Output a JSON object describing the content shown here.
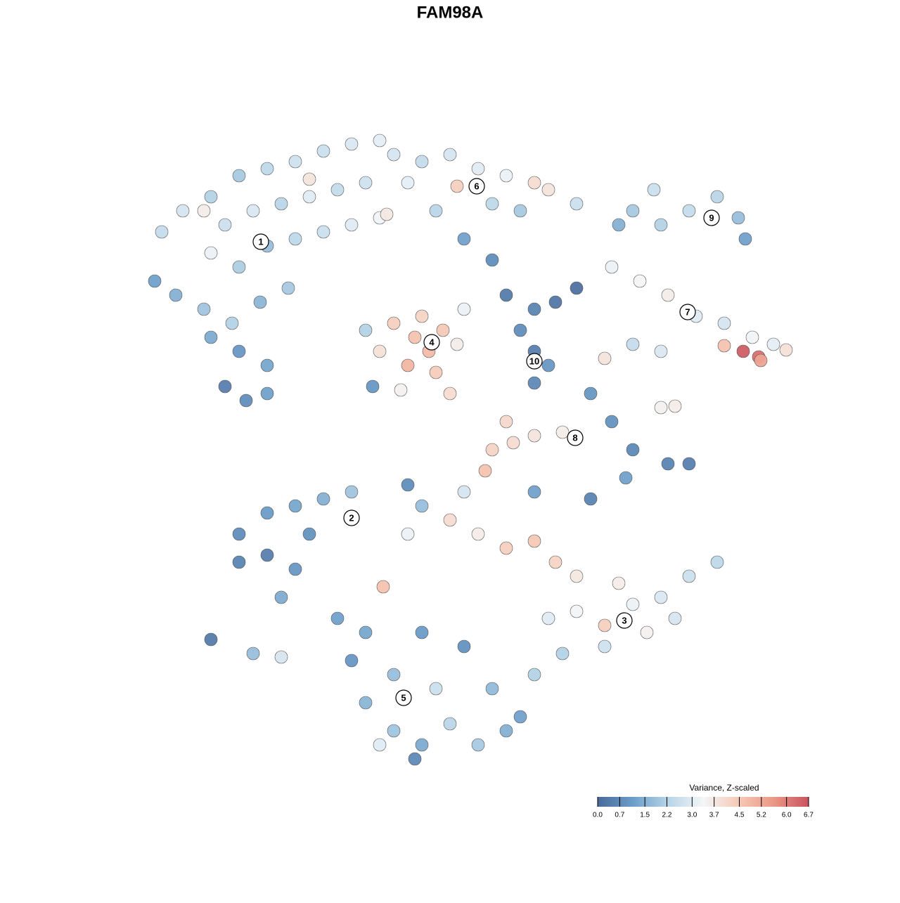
{
  "chart_data": {
    "type": "scatter",
    "title": "FAM98A",
    "xlim": [
      0,
      930
    ],
    "ylim": [
      0,
      905
    ],
    "x": [
      30,
      60,
      100,
      140,
      180,
      220,
      260,
      300,
      340,
      360,
      120,
      160,
      200,
      240,
      280,
      320,
      100,
      140,
      180,
      220,
      260,
      300,
      340,
      20,
      50,
      90,
      130,
      170,
      210,
      100,
      140,
      180,
      120,
      150,
      180,
      90,
      240,
      350,
      400,
      440,
      480,
      520,
      560,
      580,
      620,
      450,
      500,
      540,
      460,
      500,
      380,
      420,
      360,
      390,
      410,
      430,
      380,
      420,
      450,
      340,
      400,
      370,
      330,
      320,
      440,
      460,
      520,
      560,
      590,
      540,
      560,
      580,
      560,
      620,
      700,
      740,
      780,
      820,
      850,
      860,
      730,
      680,
      670,
      710,
      750,
      790,
      830,
      870,
      900,
      918,
      830,
      857,
      879,
      882,
      700,
      660,
      740,
      640,
      670,
      700,
      750,
      780,
      690,
      740,
      760,
      500,
      530,
      560,
      600,
      490,
      520,
      140,
      180,
      220,
      260,
      300,
      140,
      180,
      220,
      200,
      100,
      160,
      200,
      240,
      400,
      440,
      480,
      520,
      560,
      590,
      620,
      460,
      560,
      640,
      380,
      345,
      380,
      580,
      620,
      660,
      700,
      740,
      780,
      820,
      720,
      660,
      600,
      760,
      680,
      280,
      300,
      320,
      360,
      400,
      440,
      480,
      520,
      420,
      360,
      320,
      400,
      460,
      500,
      540,
      390,
      340,
      560
    ],
    "y": [
      760,
      790,
      810,
      840,
      850,
      860,
      875,
      885,
      890,
      870,
      770,
      790,
      800,
      810,
      820,
      830,
      730,
      710,
      740,
      750,
      760,
      770,
      780,
      690,
      670,
      650,
      630,
      660,
      680,
      610,
      590,
      570,
      540,
      520,
      530,
      790,
      835,
      785,
      860,
      870,
      850,
      840,
      830,
      820,
      800,
      825,
      800,
      790,
      750,
      720,
      830,
      790,
      630,
      610,
      590,
      620,
      570,
      560,
      600,
      590,
      640,
      535,
      540,
      620,
      530,
      650,
      670,
      650,
      660,
      620,
      590,
      570,
      545,
      680,
      790,
      770,
      790,
      810,
      780,
      750,
      820,
      770,
      710,
      690,
      670,
      640,
      630,
      610,
      600,
      592,
      598,
      590,
      582,
      577,
      600,
      580,
      590,
      530,
      490,
      450,
      430,
      430,
      410,
      510,
      512,
      450,
      460,
      470,
      475,
      420,
      490,
      330,
      360,
      370,
      380,
      390,
      290,
      300,
      280,
      240,
      180,
      160,
      155,
      330,
      370,
      350,
      330,
      310,
      320,
      290,
      270,
      390,
      390,
      380,
      400,
      255,
      330,
      210,
      220,
      200,
      230,
      240,
      270,
      290,
      190,
      170,
      160,
      210,
      260,
      210,
      150,
      90,
      50,
      30,
      60,
      30,
      50,
      110,
      130,
      190,
      190,
      170,
      110,
      70,
      10,
      30,
      130
    ],
    "values": [
      2.5,
      2.8,
      2.2,
      2.0,
      2.4,
      2.7,
      2.6,
      2.9,
      3.1,
      2.8,
      2.6,
      2.9,
      2.3,
      3.0,
      2.5,
      2.7,
      3.2,
      2.1,
      1.8,
      2.4,
      2.6,
      3.0,
      3.3,
      1.2,
      1.5,
      1.9,
      2.2,
      1.6,
      2.0,
      1.4,
      1.0,
      1.3,
      0.5,
      0.8,
      1.2,
      3.6,
      3.8,
      3.7,
      2.5,
      2.8,
      3.0,
      3.2,
      4.0,
      3.8,
      2.6,
      4.3,
      2.4,
      2.0,
      1.2,
      0.8,
      3.1,
      2.3,
      4.3,
      4.6,
      4.8,
      4.5,
      4.9,
      4.4,
      3.6,
      3.9,
      4.2,
      3.5,
      1.0,
      2.2,
      4.0,
      3.2,
      0.4,
      0.6,
      0.3,
      0.8,
      0.5,
      1.0,
      0.7,
      0.2,
      2.0,
      2.2,
      2.5,
      2.3,
      1.8,
      1.2,
      2.6,
      1.5,
      3.2,
      3.4,
      3.6,
      3.0,
      2.8,
      3.3,
      3.1,
      3.9,
      4.6,
      6.5,
      6.2,
      5.3,
      2.5,
      3.8,
      2.9,
      1.0,
      0.9,
      0.7,
      0.6,
      0.5,
      1.2,
      3.5,
      3.6,
      4.2,
      4.0,
      3.8,
      3.6,
      4.6,
      4.1,
      0.8,
      1.1,
      1.3,
      1.5,
      1.9,
      0.6,
      0.5,
      1.0,
      1.4,
      0.4,
      1.8,
      2.8,
      0.9,
      1.8,
      4.0,
      3.6,
      4.3,
      4.5,
      4.2,
      3.7,
      2.8,
      1.2,
      0.6,
      0.8,
      4.6,
      3.2,
      3.0,
      3.4,
      4.3,
      3.2,
      2.9,
      2.6,
      2.4,
      3.5,
      2.7,
      2.2,
      2.8,
      3.6,
      1.2,
      1.0,
      1.6,
      1.9,
      1.4,
      2.3,
      2.0,
      1.5,
      2.6,
      1.8,
      1.3,
      1.1,
      0.9,
      1.7,
      1.2,
      0.7,
      3.0,
      2.2
    ],
    "clusters": {
      "labels": [
        "1",
        "2",
        "3",
        "4",
        "5",
        "6",
        "7",
        "8",
        "9",
        "10"
      ],
      "x": [
        171,
        300,
        688,
        414,
        374,
        478,
        778,
        618,
        812,
        560
      ],
      "y": [
        746,
        353,
        207,
        603,
        97,
        825,
        646,
        467,
        780,
        576
      ]
    },
    "colorbar": {
      "title": "Variance, Z-scaled",
      "lim": [
        0,
        6.7
      ],
      "colors": [
        "#49699a",
        "#6b9dc9",
        "#b6d4e7",
        "#f3f6f8",
        "#f6c9b6",
        "#eb9886",
        "#c9525f"
      ],
      "ticks": [
        {
          "value": 0,
          "label": "0.0"
        },
        0.7,
        1.5,
        2.2,
        {
          "value": 3,
          "label": "3.0"
        },
        3.7,
        4.5,
        5.2,
        {
          "value": 6,
          "label": "6.0"
        },
        6.7
      ]
    }
  }
}
